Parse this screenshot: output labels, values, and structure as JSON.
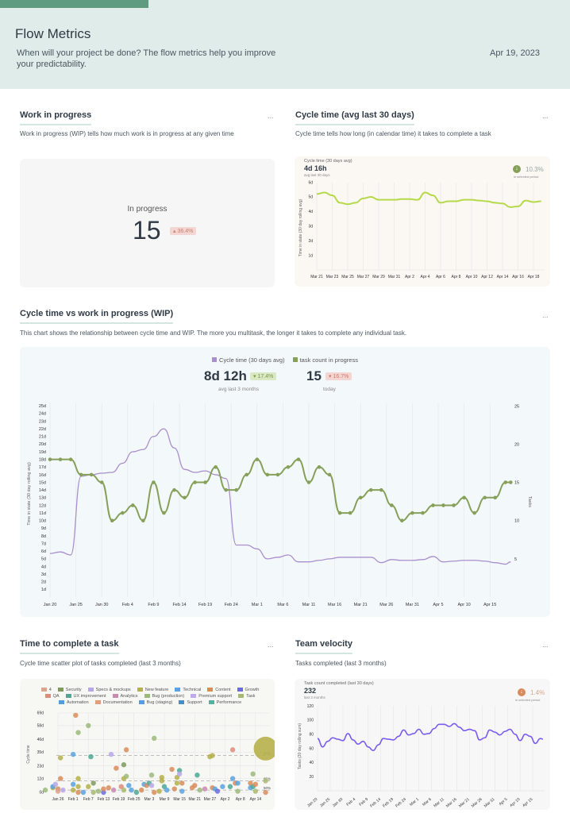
{
  "header": {
    "title": "Flow Metrics",
    "subtitle": "When will your project be done? The flow metrics help you improve your predictability.",
    "date": "Apr 19, 2023"
  },
  "colors": {
    "header_bg": "#dfecea",
    "accent": "#5f9b80",
    "cycle_line": "#a98fcc",
    "task_line": "#86a05a",
    "small_cycle_line": "#b6d94a",
    "velocity_line": "#7b5cf0",
    "good": "#86a05a",
    "bad": "#d98a6a"
  },
  "wip": {
    "title": "Work in progress",
    "more": "...",
    "description": "Work in progress (WIP) tells how much work is in progress at any given time",
    "label": "In progress",
    "value": "15",
    "change": "36.4%",
    "change_icon": "arrow-up"
  },
  "cycle": {
    "title": "Cycle time (avg last 30 days)",
    "more": "...",
    "description": "Cycle time tells how long (in calendar time) it takes to complete a task",
    "panel_label": "Cycle time (30 days avg)",
    "value": "4d 16h",
    "value_sub": "avg last 30 days",
    "change": "10.3%",
    "change_sub": "in selected period",
    "change_icon": "arrow-down-circle"
  },
  "cvw": {
    "title": "Cycle time vs work in progress (WIP)",
    "more": "...",
    "description": "This chart shows the relationship between cycle time and WIP. The more you multitask, the longer it takes to complete any individual task.",
    "legend": [
      "Cycle time (30 days avg)",
      "task count in progress"
    ],
    "cycle_value": "8d 12h",
    "cycle_change": "17.4%",
    "cycle_sub": "avg last 3 months",
    "task_value": "15",
    "task_change": "16.7%",
    "task_sub": "today"
  },
  "ttc": {
    "title": "Time to complete a task",
    "more": "...",
    "description": "Cycle time scatter plot of tasks completed (last 3 months)"
  },
  "velocity": {
    "title": "Team velocity",
    "more": "...",
    "description": "Tasks completed (last 3 months)",
    "panel_label": "Task count completed (last 30 days)",
    "value": "232",
    "value_sub": "last 3 months",
    "change": "1.4%",
    "change_sub": "in selected period",
    "change_icon": "arrow-down-circle"
  },
  "chart_data": [
    {
      "id": "cycle_small",
      "type": "line",
      "ylabel": "Time in state (30 day rolling avg)",
      "ylim": [
        0,
        6
      ],
      "grid": true,
      "yticks": [
        "1d",
        "2d",
        "3d",
        "4d",
        "5d",
        "6d"
      ],
      "xticks": [
        "Mar 21",
        "Mar 23",
        "Mar 25",
        "Mar 27",
        "Mar 29",
        "Mar 31",
        "Apr 2",
        "Apr 4",
        "Apr 6",
        "Apr 8",
        "Apr 10",
        "Apr 12",
        "Apr 14",
        "Apr 16",
        "Apr 18"
      ],
      "x": [
        "Mar 21",
        "Mar 22",
        "Mar 23",
        "Mar 24",
        "Mar 25",
        "Mar 26",
        "Mar 27",
        "Mar 28",
        "Mar 29",
        "Mar 30",
        "Mar 31",
        "Apr 1",
        "Apr 2",
        "Apr 3",
        "Apr 4",
        "Apr 5",
        "Apr 6",
        "Apr 7",
        "Apr 8",
        "Apr 9",
        "Apr 10",
        "Apr 11",
        "Apr 12",
        "Apr 13",
        "Apr 14",
        "Apr 15",
        "Apr 16",
        "Apr 17",
        "Apr 18",
        "Apr 19"
      ],
      "values": [
        5.2,
        5.3,
        5.1,
        4.6,
        4.5,
        4.6,
        4.9,
        5.0,
        4.8,
        4.8,
        4.8,
        4.85,
        4.85,
        4.8,
        5.3,
        5.1,
        4.6,
        4.7,
        4.7,
        4.8,
        4.8,
        4.75,
        4.7,
        4.6,
        4.55,
        4.3,
        4.35,
        4.75,
        4.65,
        4.7
      ]
    },
    {
      "id": "cycle_vs_wip",
      "type": "line",
      "ylabel": "Time in state (30 day rolling avg)",
      "y2label": "Tasks",
      "ylim": [
        0,
        25
      ],
      "y2lim": [
        0,
        25
      ],
      "grid": true,
      "legend": "top",
      "yticks": [
        "1d",
        "2d",
        "3d",
        "4d",
        "5d",
        "6d",
        "7d",
        "8d",
        "9d",
        "10d",
        "11d",
        "12d",
        "13d",
        "14d",
        "15d",
        "16d",
        "17d",
        "18d",
        "19d",
        "20d",
        "21d",
        "22d",
        "23d",
        "24d",
        "25d"
      ],
      "y2ticks": [
        "5",
        "10",
        "15",
        "20",
        "25"
      ],
      "xticks": [
        "Jan 20",
        "Jan 25",
        "Jan 30",
        "Feb 4",
        "Feb 9",
        "Feb 14",
        "Feb 19",
        "Feb 24",
        "Mar 1",
        "Mar 6",
        "Mar 11",
        "Mar 16",
        "Mar 21",
        "Mar 26",
        "Mar 31",
        "Apr 5",
        "Apr 10",
        "Apr 15"
      ],
      "x": [
        "Jan 20",
        "Jan 22",
        "Jan 24",
        "Jan 26",
        "Jan 28",
        "Jan 30",
        "Feb 1",
        "Feb 3",
        "Feb 5",
        "Feb 7",
        "Feb 9",
        "Feb 11",
        "Feb 13",
        "Feb 15",
        "Feb 17",
        "Feb 19",
        "Feb 21",
        "Feb 23",
        "Feb 25",
        "Feb 27",
        "Mar 1",
        "Mar 3",
        "Mar 5",
        "Mar 7",
        "Mar 9",
        "Mar 11",
        "Mar 13",
        "Mar 15",
        "Mar 17",
        "Mar 19",
        "Mar 21",
        "Mar 23",
        "Mar 25",
        "Mar 27",
        "Mar 29",
        "Mar 31",
        "Apr 2",
        "Apr 4",
        "Apr 6",
        "Apr 8",
        "Apr 10",
        "Apr 12",
        "Apr 14",
        "Apr 16",
        "Apr 18",
        "Apr 19"
      ],
      "series": [
        {
          "name": "Cycle time (30 days avg)",
          "axis": "left",
          "values": [
            5.7,
            5.9,
            5.5,
            15.8,
            16,
            16.2,
            16.3,
            17.5,
            19,
            19.3,
            21,
            22,
            19.5,
            16.7,
            16.3,
            16.5,
            16,
            15.5,
            6.8,
            6.8,
            6.3,
            5,
            5.2,
            5.5,
            4.6,
            4.6,
            4.8,
            5.0,
            5.2,
            5.2,
            5.2,
            5.2,
            4.5,
            4.9,
            4.8,
            4.8,
            4.9,
            5.3,
            4.6,
            4.7,
            4.8,
            4.8,
            4.7,
            4.5,
            4.3,
            4.6
          ]
        },
        {
          "name": "task count in progress",
          "axis": "right",
          "values": [
            18,
            18,
            18,
            16,
            16,
            15,
            10,
            11,
            12,
            10,
            15,
            11,
            14,
            13,
            15,
            15,
            17,
            14,
            14,
            16,
            18,
            16,
            16,
            17,
            18,
            15,
            17,
            16,
            11,
            11,
            13,
            14,
            14,
            12,
            10,
            11,
            11,
            12,
            12,
            12,
            13,
            11,
            13,
            13,
            15,
            15
          ]
        }
      ]
    },
    {
      "id": "scatter",
      "type": "scatter",
      "ylabel": "Cycle time",
      "ylim": [
        0,
        69
      ],
      "grid": true,
      "legend": "top",
      "yticks": [
        "0d",
        "12d",
        "23d",
        "35d",
        "46d",
        "58d",
        "69d"
      ],
      "xticks": [
        "Jan 26",
        "Feb 1",
        "Feb 7",
        "Feb 13",
        "Feb 19",
        "Feb 25",
        "Mar 3",
        "Mar 9",
        "Mar 15",
        "Mar 21",
        "Mar 27",
        "Apr 2",
        "Apr 8",
        "Apr 14"
      ],
      "categories": [
        {
          "name": "4",
          "color": "#dea28e"
        },
        {
          "name": "Security",
          "color": "#7f9a5a"
        },
        {
          "name": "Specs & mockups",
          "color": "#b7a6e8"
        },
        {
          "name": "New feature",
          "color": "#b5b04a"
        },
        {
          "name": "Technical",
          "color": "#5aa3e0"
        },
        {
          "name": "Content",
          "color": "#d98c5a"
        },
        {
          "name": "Growth",
          "color": "#6c6ce0"
        },
        {
          "name": "QA",
          "color": "#e08a7a"
        },
        {
          "name": "UX improvement",
          "color": "#4fa894"
        },
        {
          "name": "Analytics",
          "color": "#c88ab0"
        },
        {
          "name": "Bug (production)",
          "color": "#9cb87a"
        },
        {
          "name": "Premium support",
          "color": "#c0a8ef"
        },
        {
          "name": "Task",
          "color": "#a8b870"
        },
        {
          "name": "Automation",
          "color": "#4f9ee0"
        },
        {
          "name": "Documentation",
          "color": "#e0a080"
        },
        {
          "name": "Bug (staging)",
          "color": "#5a9be0"
        },
        {
          "name": "Support",
          "color": "#4a8ec8"
        },
        {
          "name": "Performance",
          "color": "#5ab0a0"
        }
      ],
      "percentiles": [
        {
          "label": "95%",
          "value": 32
        },
        {
          "label": "85%",
          "value": 10
        },
        {
          "label": "50%",
          "value": 2
        }
      ],
      "points": [
        [
          "Jan 21",
          2,
          "Bug (production)"
        ],
        [
          "Jan 24",
          4,
          "New feature"
        ],
        [
          "Jan 24",
          5,
          "Technical"
        ],
        [
          "Jan 25",
          7,
          "Specs & mockups"
        ],
        [
          "Jan 26",
          3,
          "Content"
        ],
        [
          "Jan 26",
          1,
          "4"
        ],
        [
          "Jan 27",
          12,
          "Content"
        ],
        [
          "Jan 27",
          30,
          "New feature"
        ],
        [
          "Jan 28",
          2,
          "Specs & mockups"
        ],
        [
          "Feb 1",
          33,
          "Technical"
        ],
        [
          "Feb 1",
          7,
          "Technical"
        ],
        [
          "Feb 1",
          2,
          "New feature"
        ],
        [
          "Feb 2",
          67,
          "Content"
        ],
        [
          "Feb 3",
          52,
          "Bug (production)"
        ],
        [
          "Feb 3",
          12,
          "New feature"
        ],
        [
          "Feb 3",
          5,
          "New feature"
        ],
        [
          "Feb 3",
          0,
          "Content"
        ],
        [
          "Feb 5",
          0,
          "Technical"
        ],
        [
          "Feb 7",
          58,
          "Bug (production)"
        ],
        [
          "Feb 8",
          31,
          "UX improvement"
        ],
        [
          "Feb 7",
          5,
          "New feature"
        ],
        [
          "Feb 9",
          8,
          "Security"
        ],
        [
          "Feb 9",
          0,
          "Task"
        ],
        [
          "Feb 11",
          1,
          "Bug (production)"
        ],
        [
          "Feb 13",
          0,
          "Growth"
        ],
        [
          "Feb 13",
          3,
          "Content"
        ],
        [
          "Feb 15",
          4,
          "Content"
        ],
        [
          "Feb 16",
          33,
          "Specs & mockups"
        ],
        [
          "Feb 17",
          2,
          "Analytics"
        ],
        [
          "Feb 18",
          21,
          "Content"
        ],
        [
          "Feb 20",
          5,
          "QA"
        ],
        [
          "Feb 21",
          24,
          "Security"
        ],
        [
          "Feb 21",
          12,
          "New feature"
        ],
        [
          "Feb 21",
          2,
          "Task"
        ],
        [
          "Feb 22",
          14,
          "Bug (production)"
        ],
        [
          "Feb 22",
          37,
          "Content"
        ],
        [
          "Feb 23",
          6,
          "Technical"
        ],
        [
          "Feb 24",
          2,
          "Technical"
        ],
        [
          "Feb 26",
          0,
          "UX improvement"
        ],
        [
          "Feb 28",
          2,
          "Content"
        ],
        [
          "Mar 1",
          7,
          "Technical"
        ],
        [
          "Mar 2",
          6,
          "Content"
        ],
        [
          "Mar 3",
          8,
          "UX improvement"
        ],
        [
          "Mar 4",
          15,
          "Bug (production)"
        ],
        [
          "Mar 5",
          47,
          "Bug (production)"
        ],
        [
          "Mar 4",
          6,
          "Specs & mockups"
        ],
        [
          "Mar 5",
          0,
          "Content"
        ],
        [
          "Mar 7",
          1,
          "New feature"
        ],
        [
          "Mar 8",
          13,
          "New feature"
        ],
        [
          "Mar 8",
          10,
          "New feature"
        ],
        [
          "Mar 9",
          5,
          "UX improvement"
        ],
        [
          "Mar 10",
          2,
          "Technical"
        ],
        [
          "Mar 12",
          20,
          "Content"
        ],
        [
          "Mar 13",
          3,
          "Content"
        ],
        [
          "Mar 14",
          13,
          "New feature"
        ],
        [
          "Mar 14",
          8,
          "New feature"
        ],
        [
          "Mar 15",
          19,
          "UX improvement"
        ],
        [
          "Mar 15",
          16,
          "Specs & mockups"
        ],
        [
          "Mar 16",
          8,
          "Content"
        ],
        [
          "Mar 16",
          1,
          "Technical"
        ],
        [
          "Mar 20",
          4,
          "Content"
        ],
        [
          "Mar 21",
          6,
          "Content"
        ],
        [
          "Mar 22",
          15,
          "UX improvement"
        ],
        [
          "Mar 23",
          2,
          "Bug (production)"
        ],
        [
          "Mar 25",
          3,
          "Analytics"
        ],
        [
          "Mar 27",
          31,
          "New feature"
        ],
        [
          "Mar 28",
          32,
          "New feature"
        ],
        [
          "Mar 28",
          4,
          "Content"
        ],
        [
          "Mar 29",
          3,
          "Technical"
        ],
        [
          "Mar 30",
          1,
          "Growth"
        ],
        [
          "Apr 1",
          5,
          "Technical"
        ],
        [
          "Apr 4",
          5,
          "UX improvement"
        ],
        [
          "Apr 5",
          12,
          "Technical"
        ],
        [
          "Apr 5",
          37,
          "QA"
        ],
        [
          "Apr 6",
          8,
          "Content"
        ],
        [
          "Apr 7",
          8,
          "Technical"
        ],
        [
          "Apr 7",
          1,
          "Bug (production)"
        ],
        [
          "Apr 12",
          8,
          "Content"
        ],
        [
          "Apr 12",
          4,
          "Technical"
        ],
        [
          "Apr 13",
          16,
          "Bug (production)"
        ],
        [
          "Apr 13",
          5,
          "UX improvement"
        ],
        [
          "Apr 14",
          7,
          "Content"
        ],
        [
          "Apr 14",
          1,
          "Task"
        ],
        [
          "Apr 18",
          10,
          "Task"
        ],
        [
          "Apr 18",
          0,
          "Content"
        ],
        [
          "Apr 18",
          38,
          "New feature"
        ]
      ]
    },
    {
      "id": "velocity",
      "type": "line",
      "ylabel": "Tasks (30 day rolling sum)",
      "ylim": [
        0,
        120
      ],
      "grid": true,
      "yticks": [
        "20",
        "40",
        "60",
        "80",
        "100",
        "120"
      ],
      "xticks": [
        "Jan 20",
        "Jan 25",
        "Jan 30",
        "Feb 4",
        "Feb 9",
        "Feb 14",
        "Feb 19",
        "Feb 24",
        "Mar 1",
        "Mar 6",
        "Mar 11",
        "Mar 16",
        "Mar 21",
        "Mar 26",
        "Mar 31",
        "Apr 5",
        "Apr 10",
        "Apr 15"
      ],
      "x": [
        "Jan 20",
        "Jan 22",
        "Jan 24",
        "Jan 26",
        "Jan 28",
        "Jan 30",
        "Feb 1",
        "Feb 3",
        "Feb 5",
        "Feb 7",
        "Feb 9",
        "Feb 11",
        "Feb 13",
        "Feb 15",
        "Feb 17",
        "Feb 19",
        "Feb 21",
        "Feb 23",
        "Feb 25",
        "Feb 27",
        "Mar 1",
        "Mar 3",
        "Mar 5",
        "Mar 7",
        "Mar 9",
        "Mar 11",
        "Mar 13",
        "Mar 15",
        "Mar 17",
        "Mar 19",
        "Mar 21",
        "Mar 23",
        "Mar 25",
        "Mar 27",
        "Mar 29",
        "Mar 31",
        "Apr 2",
        "Apr 4",
        "Apr 6",
        "Apr 8",
        "Apr 10",
        "Apr 12",
        "Apr 14",
        "Apr 16",
        "Apr 18",
        "Apr 19"
      ],
      "values": [
        74,
        62,
        70,
        75,
        73,
        71,
        81,
        72,
        66,
        70,
        62,
        57,
        65,
        74,
        73,
        72,
        77,
        86,
        79,
        81,
        87,
        80,
        81,
        88,
        94,
        94,
        91,
        95,
        90,
        85,
        87,
        85,
        72,
        75,
        86,
        83,
        79,
        84,
        87,
        80,
        71,
        80,
        77,
        67,
        74,
        73
      ]
    }
  ]
}
